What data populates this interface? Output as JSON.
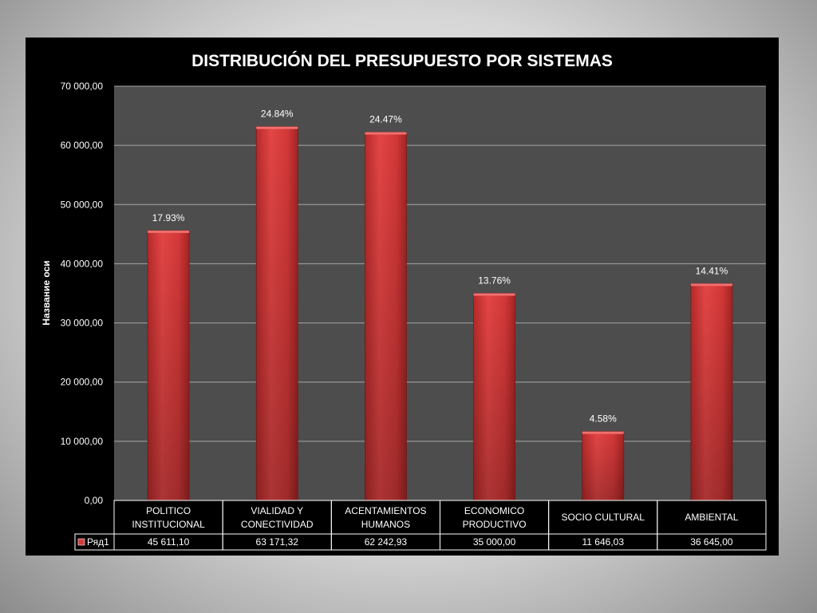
{
  "chart_data": {
    "type": "bar",
    "title": "DISTRIBUCIÓN DEL PRESUPUESTO  POR SISTEMAS",
    "ylabel": "Название оси",
    "xlabel": "",
    "ylim": [
      0,
      70000
    ],
    "y_ticks": [
      "0,00",
      "10 000,00",
      "20 000,00",
      "30 000,00",
      "40 000,00",
      "50 000,00",
      "60 000,00",
      "70 000,00"
    ],
    "categories": [
      [
        "POLITICO",
        "INSTITUCIONAL"
      ],
      [
        "VIALIDAD Y",
        "CONECTIVIDAD"
      ],
      [
        "ACENTAMIENTOS",
        "HUMANOS"
      ],
      [
        "ECONOMICO",
        "PRODUCTIVO"
      ],
      [
        "SOCIO CULTURAL"
      ],
      [
        "AMBIENTAL"
      ]
    ],
    "series": [
      {
        "name": "Ряд1",
        "values": [
          45611.1,
          63171.32,
          62242.93,
          35000.0,
          11646.03,
          36645.0
        ],
        "value_labels": [
          "45 611,10",
          "63 171,32",
          "62 242,93",
          "35 000,00",
          "11 646,03",
          "36 645,00"
        ],
        "data_labels": [
          "17.93%",
          "24.84%",
          "24.47%",
          "13.76%",
          "4.58%",
          "14.41%"
        ],
        "color": "#d83a3a"
      }
    ],
    "grid": true,
    "data_table": true
  },
  "colors": {
    "panel_bg": "#000000",
    "plot_bg": "#4d4d4d",
    "grid": "#a6a6a6",
    "bar_top": "#e54848",
    "bar_bottom": "#9e2020",
    "text": "#ffffff"
  }
}
